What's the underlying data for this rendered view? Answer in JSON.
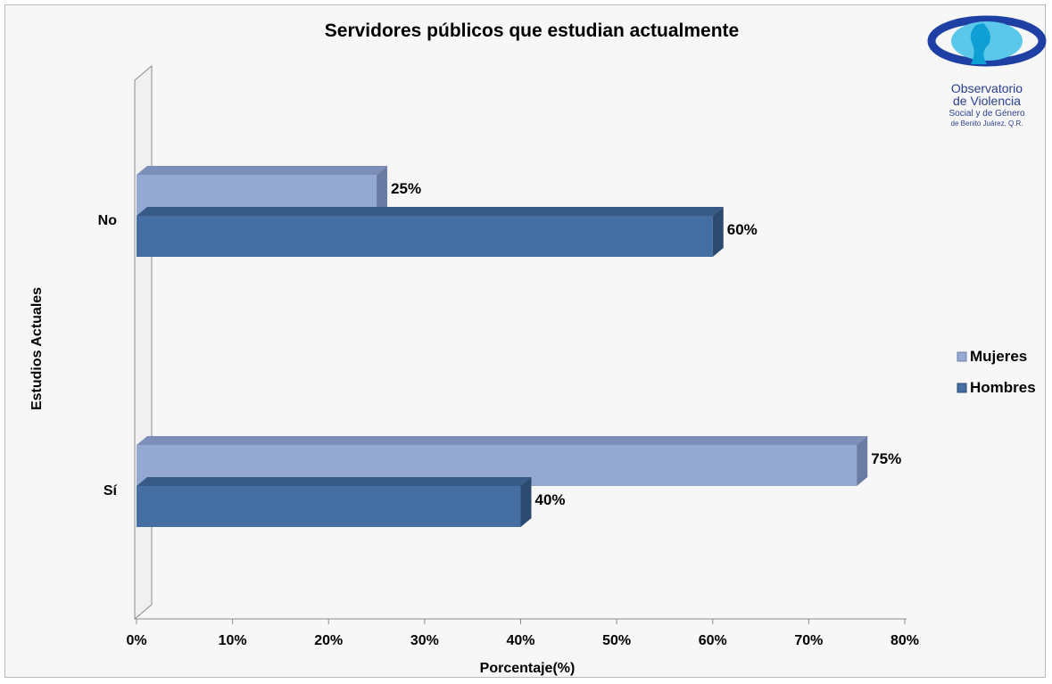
{
  "chart_data": {
    "type": "bar",
    "orientation": "horizontal",
    "title": "Servidores públicos que estudian actualmente",
    "xlabel": "Porcentaje(%)",
    "ylabel": "Estudios Actuales",
    "categories": [
      "No",
      "Sí"
    ],
    "series": [
      {
        "name": "Mujeres",
        "values": [
          25,
          75
        ],
        "color": "#94a9d1",
        "top_color": "#7d8fb8",
        "side_color": "#6a7ca4"
      },
      {
        "name": "Hombres",
        "values": [
          60,
          40
        ],
        "color": "#456ea3",
        "top_color": "#385a86",
        "side_color": "#2c4a70"
      }
    ],
    "data_labels": [
      [
        "25%",
        "75%"
      ],
      [
        "60%",
        "40%"
      ]
    ],
    "xlim": [
      0,
      80
    ],
    "x_ticks": [
      0,
      10,
      20,
      30,
      40,
      50,
      60,
      70,
      80
    ],
    "x_tick_labels": [
      "0%",
      "10%",
      "20%",
      "30%",
      "40%",
      "50%",
      "60%",
      "70%",
      "80%"
    ],
    "legend_position": "right",
    "grid": false
  },
  "logo": {
    "line1": "Observatorio",
    "line2": "de Violencia",
    "line3": "Social y de Género",
    "line4": "de Benito Juárez, Q.R."
  }
}
